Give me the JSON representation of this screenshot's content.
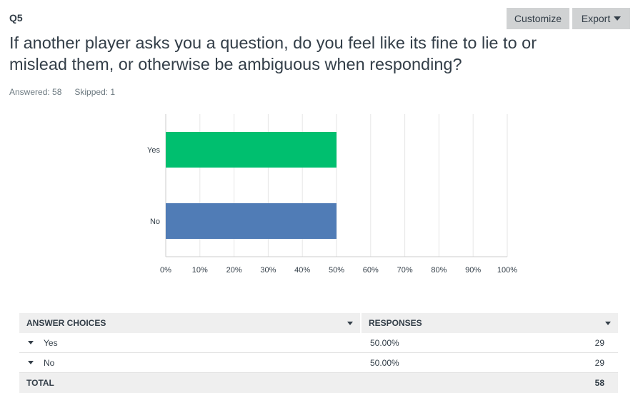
{
  "question": {
    "number": "Q5",
    "text": "If another player asks you a question, do you feel like its fine to lie to or mislead them, or otherwise be ambiguous when responding?",
    "answered_label": "Answered: 58",
    "skipped_label": "Skipped: 1"
  },
  "toolbar": {
    "customize_label": "Customize",
    "export_label": "Export"
  },
  "chart_data": {
    "type": "bar",
    "orientation": "horizontal",
    "categories": [
      "Yes",
      "No"
    ],
    "values": [
      50,
      50
    ],
    "colors": [
      "#00bf6f",
      "#507cb6"
    ],
    "xlim": [
      0,
      100
    ],
    "xticks": [
      "0%",
      "10%",
      "20%",
      "30%",
      "40%",
      "50%",
      "60%",
      "70%",
      "80%",
      "90%",
      "100%"
    ],
    "grid": true
  },
  "table": {
    "headers": {
      "choice": "ANSWER CHOICES",
      "responses": "RESPONSES"
    },
    "rows": [
      {
        "choice": "Yes",
        "percent": "50.00%",
        "count": "29"
      },
      {
        "choice": "No",
        "percent": "50.00%",
        "count": "29"
      }
    ],
    "total": {
      "label": "TOTAL",
      "count": "58"
    }
  }
}
